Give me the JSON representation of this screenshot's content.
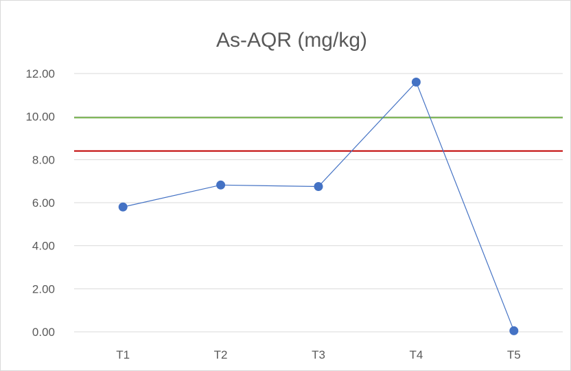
{
  "chart_data": {
    "type": "line",
    "title": "As-AQR (mg/kg)",
    "categories": [
      "T1",
      "T2",
      "T3",
      "T4",
      "T5"
    ],
    "series": [
      {
        "values": [
          5.8,
          6.82,
          6.75,
          11.6,
          0.05
        ],
        "color": "#4472c4"
      }
    ],
    "reference_lines": [
      {
        "value": 9.95,
        "color": "#70ad47"
      },
      {
        "value": 8.4,
        "color": "#c00000"
      }
    ],
    "ylim": [
      0,
      12
    ],
    "y_ticks": [
      "0.00",
      "2.00",
      "4.00",
      "6.00",
      "8.00",
      "10.00",
      "12.00"
    ],
    "grid": true,
    "legend": "none"
  }
}
